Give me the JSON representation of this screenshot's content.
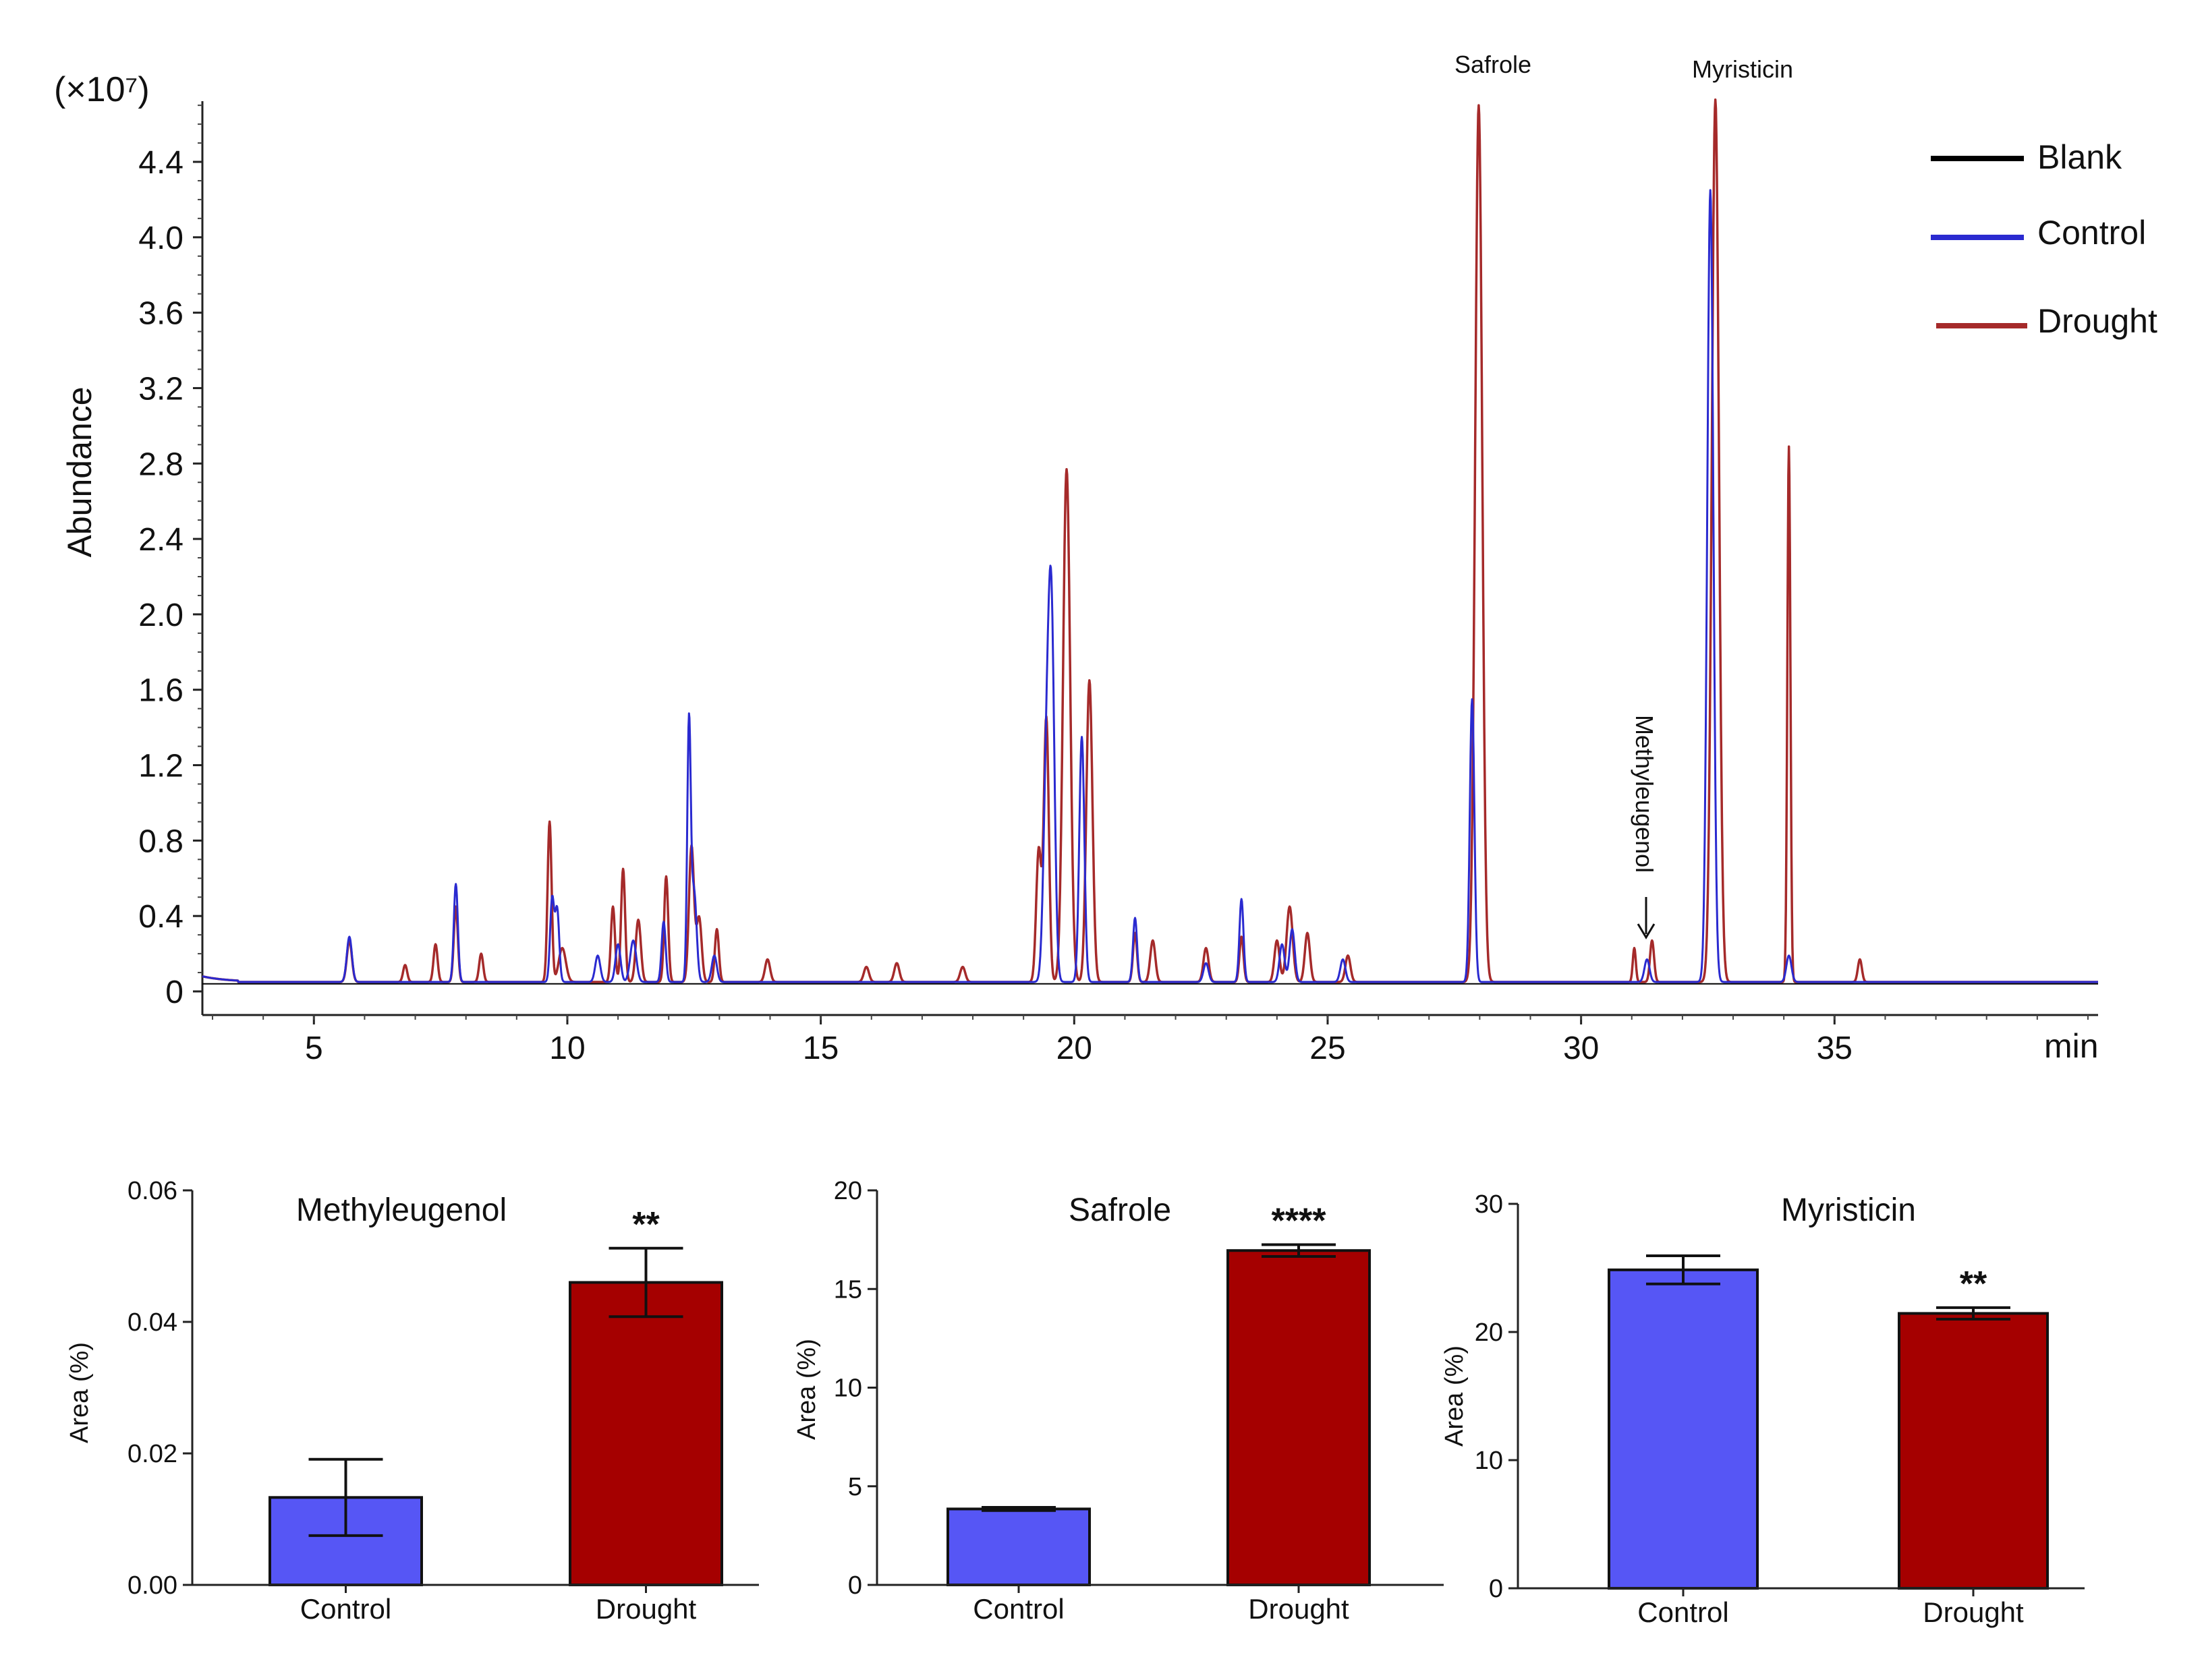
{
  "chart_data": [
    {
      "type": "line",
      "title": "",
      "xlabel": "min",
      "ylabel": "Abundance",
      "scale_label": "(×10⁷)",
      "xlim": [
        2.8,
        40.2
      ],
      "ylim": [
        0,
        4.7
      ],
      "x_ticks": [
        5,
        10,
        15,
        20,
        25,
        30,
        35
      ],
      "y_ticks": [
        0,
        0.4,
        0.8,
        1.2,
        1.6,
        2.0,
        2.4,
        2.8,
        3.2,
        3.6,
        4.0,
        4.4
      ],
      "y_tick_labels": [
        "0",
        "0.4",
        "0.8",
        "1.2",
        "1.6",
        "2.0",
        "2.4",
        "2.8",
        "3.2",
        "3.6",
        "4.0",
        "4.4"
      ],
      "baseline": 0.05,
      "legend_position": "top-right",
      "annotations": [
        {
          "text": "Safrole",
          "x": 27.9
        },
        {
          "text": "Myristicin",
          "x": 32.9
        },
        {
          "text": "Methyleugenol",
          "x": 31.0,
          "rotated": true
        }
      ],
      "series": [
        {
          "name": "Blank",
          "color": "#000000",
          "peaks": []
        },
        {
          "name": "Control",
          "color": "#2a2ad0",
          "peaks": [
            [
              5.7,
              0.24,
              0.05
            ],
            [
              7.8,
              0.52,
              0.04
            ],
            [
              9.7,
              0.44,
              0.04
            ],
            [
              9.8,
              0.38,
              0.04
            ],
            [
              10.6,
              0.14,
              0.05
            ],
            [
              11.0,
              0.2,
              0.05
            ],
            [
              11.3,
              0.22,
              0.06
            ],
            [
              11.9,
              0.32,
              0.04
            ],
            [
              12.4,
              1.36,
              0.035
            ],
            [
              12.5,
              0.48,
              0.05
            ],
            [
              12.9,
              0.14,
              0.05
            ],
            [
              19.45,
              1.0,
              0.06
            ],
            [
              19.55,
              1.9,
              0.06
            ],
            [
              20.15,
              1.3,
              0.05
            ],
            [
              21.2,
              0.34,
              0.04
            ],
            [
              22.6,
              0.1,
              0.05
            ],
            [
              23.3,
              0.44,
              0.04
            ],
            [
              24.1,
              0.2,
              0.05
            ],
            [
              24.3,
              0.28,
              0.05
            ],
            [
              25.3,
              0.12,
              0.05
            ],
            [
              27.85,
              1.5,
              0.045
            ],
            [
              31.3,
              0.12,
              0.05
            ],
            [
              32.55,
              4.2,
              0.06
            ],
            [
              34.1,
              0.14,
              0.05
            ]
          ]
        },
        {
          "name": "Drought",
          "color": "#a52a2a",
          "peaks": [
            [
              5.7,
              0.22,
              0.05
            ],
            [
              6.8,
              0.09,
              0.04
            ],
            [
              7.4,
              0.2,
              0.04
            ],
            [
              7.8,
              0.4,
              0.04
            ],
            [
              8.3,
              0.15,
              0.04
            ],
            [
              9.65,
              0.85,
              0.04
            ],
            [
              9.9,
              0.18,
              0.07
            ],
            [
              10.9,
              0.4,
              0.04
            ],
            [
              11.1,
              0.6,
              0.04
            ],
            [
              11.4,
              0.33,
              0.05
            ],
            [
              11.95,
              0.56,
              0.04
            ],
            [
              12.45,
              0.72,
              0.05
            ],
            [
              12.6,
              0.34,
              0.05
            ],
            [
              12.95,
              0.28,
              0.04
            ],
            [
              13.95,
              0.12,
              0.05
            ],
            [
              15.9,
              0.08,
              0.05
            ],
            [
              16.5,
              0.1,
              0.05
            ],
            [
              17.8,
              0.08,
              0.05
            ],
            [
              19.3,
              0.7,
              0.05
            ],
            [
              19.45,
              1.4,
              0.05
            ],
            [
              19.85,
              2.72,
              0.07
            ],
            [
              20.3,
              1.6,
              0.06
            ],
            [
              21.2,
              0.26,
              0.04
            ],
            [
              21.55,
              0.22,
              0.05
            ],
            [
              22.6,
              0.18,
              0.05
            ],
            [
              23.3,
              0.24,
              0.04
            ],
            [
              24.0,
              0.22,
              0.05
            ],
            [
              24.25,
              0.4,
              0.06
            ],
            [
              24.6,
              0.26,
              0.05
            ],
            [
              25.4,
              0.14,
              0.05
            ],
            [
              27.98,
              4.65,
              0.07
            ],
            [
              31.05,
              0.18,
              0.03
            ],
            [
              31.4,
              0.22,
              0.04
            ],
            [
              32.65,
              4.68,
              0.07
            ],
            [
              34.1,
              2.84,
              0.03
            ],
            [
              35.5,
              0.12,
              0.04
            ]
          ]
        }
      ]
    },
    {
      "type": "bar",
      "title": "Methyleugenol",
      "xlabel": "",
      "ylabel": "Area (%)",
      "categories": [
        "Control",
        "Drought"
      ],
      "values": [
        0.0133,
        0.046
      ],
      "errors": [
        0.0058,
        0.0052
      ],
      "colors": [
        "#5656f5",
        "#a50000"
      ],
      "significance": [
        "",
        "**"
      ],
      "ylim": [
        0,
        0.06
      ],
      "y_ticks": [
        0,
        0.02,
        0.04,
        0.06
      ],
      "y_tick_labels": [
        "0.00",
        "0.02",
        "0.04",
        "0.06"
      ]
    },
    {
      "type": "bar",
      "title": "Safrole",
      "xlabel": "",
      "ylabel": "Area (%)",
      "categories": [
        "Control",
        "Drought"
      ],
      "values": [
        3.85,
        16.95
      ],
      "errors": [
        0.08,
        0.3
      ],
      "colors": [
        "#5656f5",
        "#a50000"
      ],
      "significance": [
        "",
        "****"
      ],
      "ylim": [
        0,
        20
      ],
      "y_ticks": [
        0,
        5,
        10,
        15,
        20
      ],
      "y_tick_labels": [
        "0",
        "5",
        "10",
        "15",
        "20"
      ]
    },
    {
      "type": "bar",
      "title": "Myristicin",
      "xlabel": "",
      "ylabel": "Area (%)",
      "categories": [
        "Control",
        "Drought"
      ],
      "values": [
        24.85,
        21.45
      ],
      "errors": [
        1.1,
        0.45
      ],
      "colors": [
        "#5656f5",
        "#a50000"
      ],
      "significance": [
        "",
        "**"
      ],
      "ylim": [
        0,
        30
      ],
      "y_ticks": [
        0,
        10,
        20,
        30
      ],
      "y_tick_labels": [
        "0",
        "10",
        "20",
        "30"
      ]
    }
  ]
}
